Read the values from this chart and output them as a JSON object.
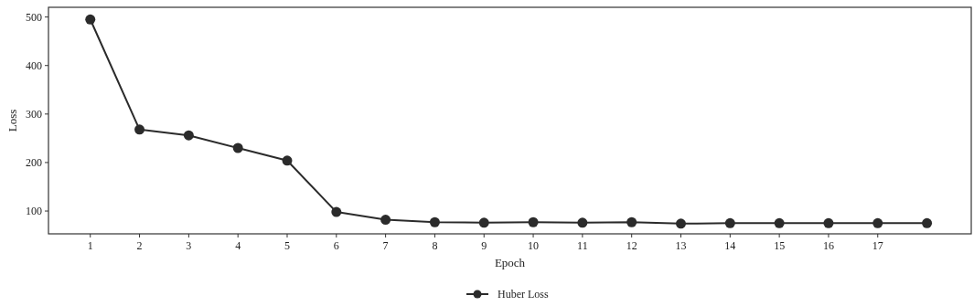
{
  "chart_data": {
    "type": "line",
    "xlabel": "Epoch",
    "ylabel": "Loss",
    "x": [
      1,
      2,
      3,
      4,
      5,
      6,
      7,
      8,
      9,
      10,
      11,
      12,
      13,
      14,
      15,
      16,
      17,
      18
    ],
    "series": [
      {
        "name": "Huber Loss",
        "color": "#2b2b2b",
        "values": [
          495,
          268,
          256,
          230,
          204,
          98,
          82,
          77,
          76,
          77,
          76,
          77,
          74,
          75,
          75,
          75,
          75,
          75
        ]
      }
    ],
    "xlim": [
      0.15,
      18.9
    ],
    "xticks": [
      1,
      2,
      3,
      4,
      5,
      6,
      7,
      8,
      9,
      10,
      11,
      12,
      13,
      14,
      15,
      16,
      17
    ],
    "ylim": [
      53,
      520
    ],
    "yticks": [
      100,
      200,
      300,
      400,
      500
    ],
    "grid": false,
    "legend": "bottom",
    "marker": "circle",
    "line_style": "solid"
  }
}
